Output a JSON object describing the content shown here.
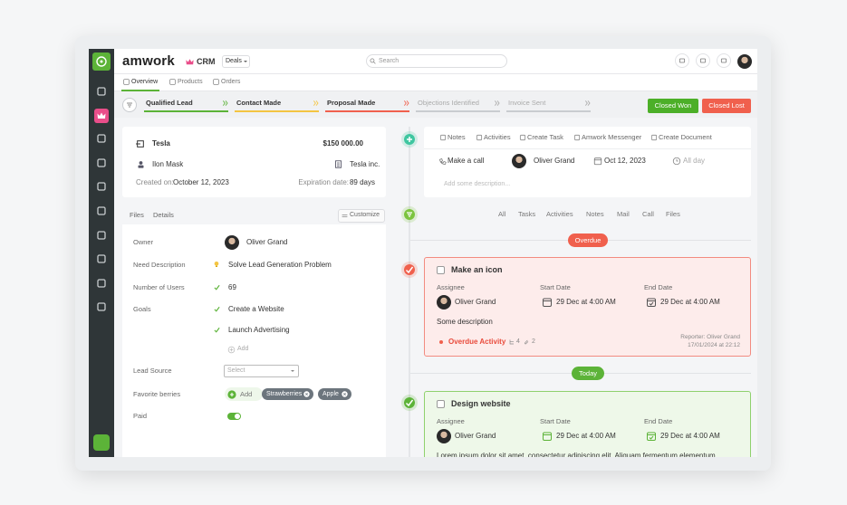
{
  "header": {
    "logo": "amwork",
    "module": "CRM",
    "dropdown": "Deals",
    "search": "Search"
  },
  "tabs": [
    "Overview",
    "Products",
    "Orders"
  ],
  "pipeline": {
    "stages": [
      "Qualified Lead",
      "Contact Made",
      "Proposal Made",
      "Objections Identified",
      "Invoice Sent"
    ],
    "buttons": [
      "Closed Won",
      "Closed Lost"
    ]
  },
  "deal": {
    "name": "Tesla",
    "amount": "$150 000.00",
    "contact": "Ilon Mask",
    "company": "Tesla inc.",
    "created_label": "Created on:",
    "created": "October 12, 2023",
    "expiration_label": "Expiration date:",
    "expiration": "89 days"
  },
  "detail_tabs": [
    "Files",
    "Details"
  ],
  "customize": "Customize",
  "details": {
    "owner": {
      "label": "Owner",
      "value": "Oliver Grand"
    },
    "need": {
      "label": "Need Description",
      "value": "Solve Lead Generation Problem"
    },
    "users": {
      "label": "Number of Users",
      "value": "69"
    },
    "goals": {
      "label": "Goals",
      "values": [
        "Create a Website",
        "Launch Advertising"
      ],
      "add": "Add"
    },
    "lead_source": {
      "label": "Lead Source",
      "placeholder": "Select"
    },
    "berries": {
      "label": "Favorite berries",
      "add": "Add",
      "tags": [
        "Strawberries",
        "Apple"
      ]
    },
    "paid": {
      "label": "Paid"
    }
  },
  "activity_actions": [
    "Notes",
    "Activities",
    "Create Task",
    "Amwork Messenger",
    "Create Document"
  ],
  "new_activity": {
    "type": "Make a call",
    "assignee": "Oliver Grand",
    "date": "Oct 12, 2023",
    "time": "All day",
    "placeholder": "Add some description..."
  },
  "filters": [
    "All",
    "Tasks",
    "Activities",
    "Notes",
    "Mail",
    "Call",
    "Files"
  ],
  "overdue": {
    "label": "Overdue",
    "card": {
      "title": "Make an icon",
      "assignee_label": "Assignee",
      "start_label": "Start Date",
      "end_label": "End Date",
      "assignee": "Oliver Grand",
      "start": "29 Dec at 4:00 AM",
      "end": "29 Dec at 4:00 AM",
      "description": "Some description",
      "status": "Overdue Activity",
      "subtasks": "4",
      "attachments": "2",
      "reporter": "Reporter: Oliver Grand",
      "reported_at": "17/01/2024 at 22:12"
    }
  },
  "today": {
    "label": "Today",
    "card": {
      "title": "Design website",
      "assignee_label": "Assignee",
      "start_label": "Start Date",
      "end_label": "End Date",
      "assignee": "Oliver Grand",
      "start": "29 Dec at 4:00 AM",
      "end": "29 Dec at 4:00 AM",
      "description": "Lorem ipsum dolor sit amet, consectetur adipiscing elit. Aliquam fermentum elementum"
    }
  }
}
